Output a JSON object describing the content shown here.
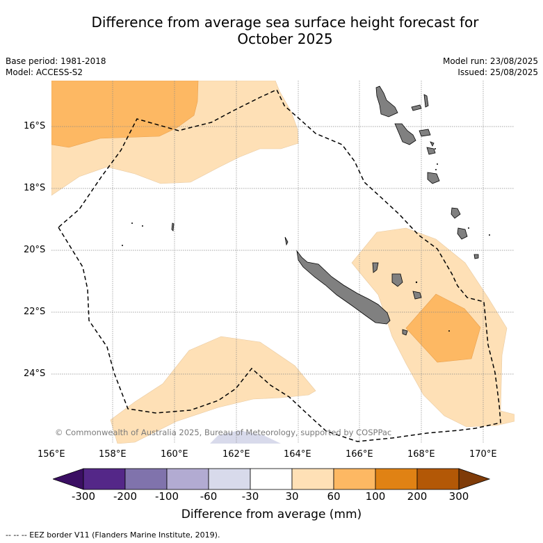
{
  "title_line1": "Difference from average sea surface height forecast for",
  "title_line2": "October 2025",
  "base_period": "Base period: 1981-2018",
  "model": "Model: ACCESS-S2",
  "model_run": "Model run: 23/08/2025",
  "issued": "Issued: 25/08/2025",
  "copyright": "© Commonwealth of Australia 2025, Bureau of Meteorology, supported by COSPPac",
  "lat_ticks": [
    "16°S",
    "18°S",
    "20°S",
    "22°S",
    "24°S"
  ],
  "lon_ticks": [
    "156°E",
    "158°E",
    "160°E",
    "162°E",
    "164°E",
    "166°E",
    "168°E",
    "170°E"
  ],
  "colorbar": {
    "label": "Difference from average (mm)",
    "ticks": [
      "-300",
      "-200",
      "-100",
      "-60",
      "-30",
      "30",
      "60",
      "100",
      "200",
      "300"
    ],
    "colors": [
      "#3b0f63",
      "#542788",
      "#8073ac",
      "#b2abd2",
      "#d8daeb",
      "#ffffff",
      "#fee0b6",
      "#fdb863",
      "#e08214",
      "#b35806",
      "#7f3b08"
    ]
  },
  "legend_note": "--  --  -- EEZ border V11 (Flanders Marine Institute, 2019)."
}
